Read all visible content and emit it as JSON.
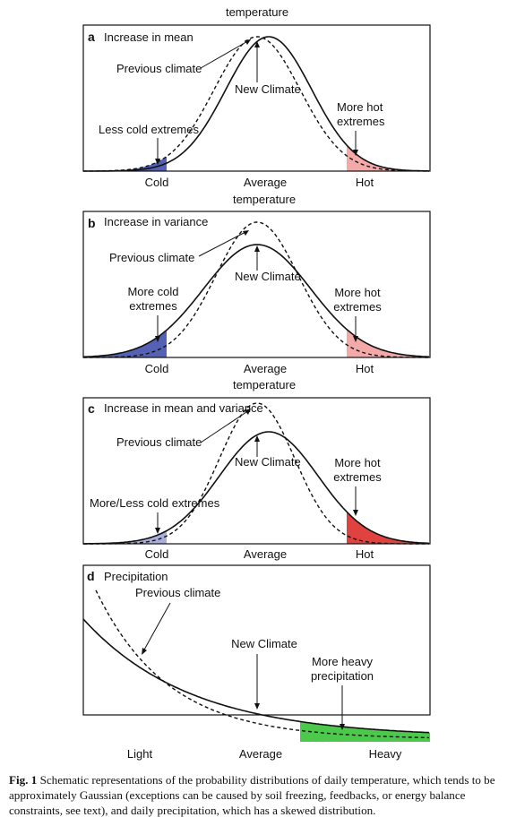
{
  "top_axis_label": "temperature",
  "panels": [
    {
      "letter": "a",
      "title": "Increase in mean",
      "previous_label": "Previous climate",
      "new_label": "New Climate",
      "cold_label_lines": [
        "Less cold extremes"
      ],
      "hot_label_lines": [
        "More hot",
        "extremes"
      ],
      "x_ticks": [
        "Cold",
        "Average",
        "Hot"
      ],
      "axis_label_below": "temperature"
    },
    {
      "letter": "b",
      "title": "Increase in variance",
      "previous_label": "Previous climate",
      "new_label": "New Climate",
      "cold_label_lines": [
        "More cold",
        "extremes"
      ],
      "hot_label_lines": [
        "More hot",
        "extremes"
      ],
      "x_ticks": [
        "Cold",
        "Average",
        "Hot"
      ],
      "axis_label_below": "temperature"
    },
    {
      "letter": "c",
      "title": "Increase in mean and variance",
      "previous_label": "Previous climate",
      "new_label": "New Climate",
      "cold_label_lines": [
        "More/Less cold extremes"
      ],
      "hot_label_lines": [
        "More hot",
        "extremes"
      ],
      "x_ticks": [
        "Cold",
        "Average",
        "Hot"
      ],
      "axis_label_below": ""
    },
    {
      "letter": "d",
      "title": "Precipitation",
      "previous_label": "Previous climate",
      "new_label": "New Climate",
      "heavy_label_lines": [
        "More heavy",
        "precipitation"
      ],
      "x_ticks": [
        "Light",
        "Average",
        "Heavy"
      ]
    }
  ],
  "colors": {
    "cold_previous": "#5561b5",
    "cold_new": "#a9aedb",
    "hot_previous": "#f4a9a9",
    "hot_new": "#e0433f",
    "heavy": "#4cc94a",
    "heavy_light": "#b8ebb6"
  },
  "caption": {
    "label": "Fig. 1",
    "text": "Schematic representations of the probability distributions of daily temperature, which tends to be approximately Gaussian (exceptions can be caused by soil freezing, feedbacks, or energy balance constraints, see text), and daily precipitation, which has a skewed distribution."
  }
}
